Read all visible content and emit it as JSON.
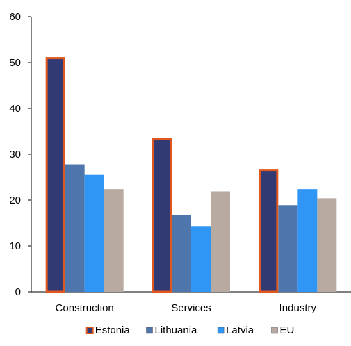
{
  "chart_data": {
    "type": "bar",
    "categories": [
      "Construction",
      "Services",
      "Industry"
    ],
    "series": [
      {
        "name": "Estonia",
        "values": [
          51.2,
          33.5,
          26.8
        ],
        "color": "#323a73",
        "border": "#e0571f"
      },
      {
        "name": "Lithuania",
        "values": [
          27.8,
          16.8,
          18.9
        ],
        "color": "#4f75ad"
      },
      {
        "name": "Latvia",
        "values": [
          25.5,
          14.2,
          22.4
        ],
        "color": "#2f96f5"
      },
      {
        "name": "EU",
        "values": [
          22.4,
          21.9,
          20.4
        ],
        "color": "#b8aaa0"
      }
    ],
    "ylim": [
      0,
      60
    ],
    "yticks": [
      0,
      10,
      20,
      30,
      40,
      50,
      60
    ],
    "grid": false,
    "legend": "bottom"
  }
}
